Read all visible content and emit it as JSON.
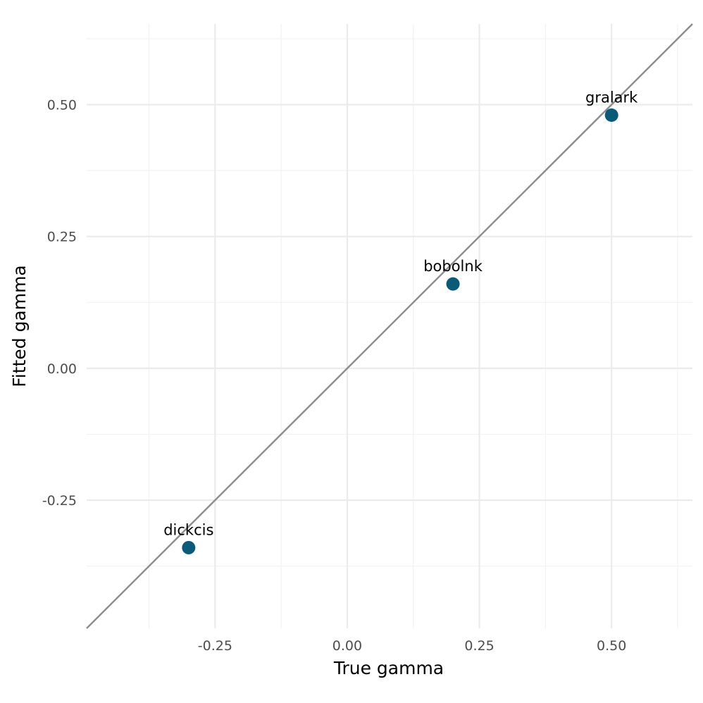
{
  "chart_data": {
    "type": "scatter",
    "xlabel": "True gamma",
    "ylabel": "Fitted gamma",
    "xlim": [
      -0.493,
      0.653
    ],
    "ylim": [
      -0.493,
      0.653
    ],
    "x_ticks": [
      -0.25,
      0.0,
      0.25,
      0.5
    ],
    "x_tick_labels": [
      "-0.25",
      "0.00",
      "0.25",
      "0.50"
    ],
    "y_ticks": [
      -0.25,
      0.0,
      0.25,
      0.5
    ],
    "y_tick_labels": [
      "-0.25",
      "0.00",
      "0.25",
      "0.50"
    ],
    "x_minor": [
      -0.375,
      -0.125,
      0.125,
      0.375,
      0.625
    ],
    "y_minor": [
      -0.375,
      -0.125,
      0.125,
      0.375,
      0.625
    ],
    "grid": true,
    "reference_line": {
      "type": "identity",
      "color": "#8c8c8c"
    },
    "point_color": "#0b5a78",
    "points": [
      {
        "label": "dickcis",
        "x": -0.3,
        "y": -0.34
      },
      {
        "label": "bobolnk",
        "x": 0.2,
        "y": 0.16
      },
      {
        "label": "gralark",
        "x": 0.5,
        "y": 0.48
      }
    ]
  }
}
